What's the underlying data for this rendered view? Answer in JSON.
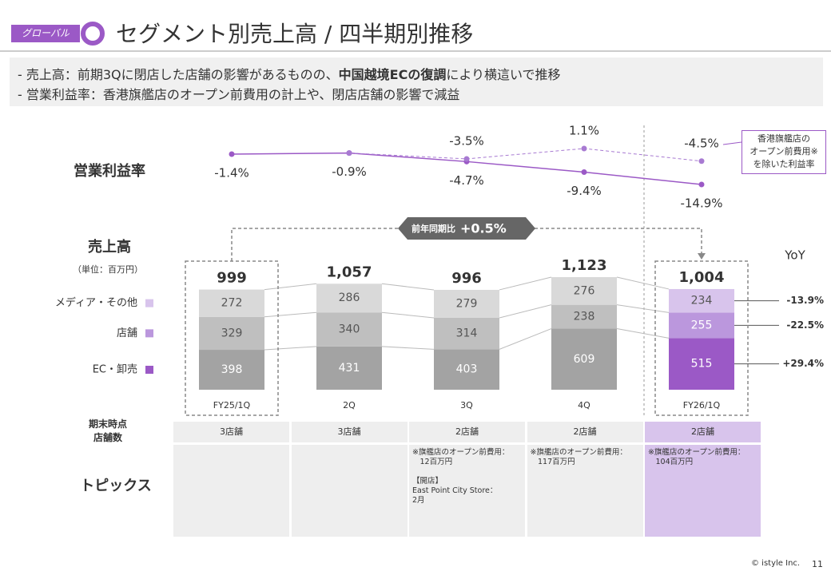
{
  "header": {
    "tag": "グローバル",
    "title": "セグメント別売上高 / 四半期別推移"
  },
  "bullets": [
    {
      "parts": [
        "- 売上高：前期3Qに閉店した店舗の影響があるものの、",
        "中国越境ECの復調",
        "により横這いで推移"
      ],
      "bold": [
        1
      ]
    },
    {
      "parts": [
        "- 営業利益率：香港旗艦店のオープン前費用の計上や、閉店店舗の影響で減益"
      ],
      "bold": []
    }
  ],
  "chart_data": [
    {
      "type": "line",
      "title": "営業利益率",
      "series": [
        {
          "name": "営業利益率",
          "color": "#9b59c6",
          "dash": false,
          "label_position": "below",
          "values": [
            -1.4,
            -0.9,
            -4.7,
            -9.4,
            -14.9
          ],
          "value_labels": [
            "-1.4%",
            "-0.9%",
            "-4.7%",
            "-9.4%",
            "-14.9%"
          ]
        },
        {
          "name": "香港旗艦店の\nオープン前費用※\nを除いた利益率",
          "color": "#a87ad2",
          "dash": true,
          "label_position": "above",
          "values": [
            null,
            -0.9,
            -3.5,
            1.1,
            -4.5
          ],
          "value_labels": [
            null,
            null,
            "-3.5%",
            "1.1%",
            "-4.5%"
          ]
        }
      ]
    },
    {
      "type": "stacked_bar",
      "title": "売上高",
      "subtitle": "（単位：百万円）",
      "categories": [
        "FY25/1Q",
        "2Q",
        "3Q",
        "4Q",
        "FY26/1Q"
      ],
      "highlight": 4,
      "series": [
        {
          "name": "EC・卸売",
          "color": "#9b59c6",
          "muted_color": "#a3a3a3",
          "values": [
            398,
            431,
            403,
            609,
            515
          ],
          "yoy": 29.4,
          "yoy_label": "+29.4%"
        },
        {
          "name": "店舗",
          "color": "#bb97dd",
          "muted_color": "#bfbfbf",
          "values": [
            329,
            340,
            314,
            238,
            255
          ],
          "yoy": -22.5,
          "yoy_label": "-22.5%"
        },
        {
          "name": "メディア・その他",
          "color": "#d8c4ec",
          "muted_color": "#d9d9d9",
          "values": [
            272,
            286,
            279,
            276,
            234
          ],
          "yoy": -13.9,
          "yoy_label": "-13.9%"
        }
      ],
      "totals": [
        999,
        1057,
        996,
        1123,
        1004
      ],
      "total_labels": [
        "999",
        "1,057",
        "996",
        "1,123",
        "1,004"
      ],
      "yoy_title": "YoY",
      "comparison": {
        "label": "前年同期比",
        "value": 0.5,
        "value_label": "+0.5%"
      }
    }
  ],
  "table": {
    "row_labels": [
      "期末時点\n店舗数",
      "トピックス"
    ],
    "stores": [
      "3店舗",
      "3店舗",
      "2店舗",
      "2店舗",
      "2店舗"
    ],
    "topics": [
      null,
      null,
      "※旗艦店のオープン前費用：\n　12百万円\n\n【開店】\nEast Point City Store：\n2月",
      "※旗艦店のオープン前費用：\n　117百万円",
      "※旗艦店のオープン前費用：\n　104百万円"
    ]
  },
  "footer": {
    "copyright": "© istyle Inc.",
    "page": 11
  }
}
